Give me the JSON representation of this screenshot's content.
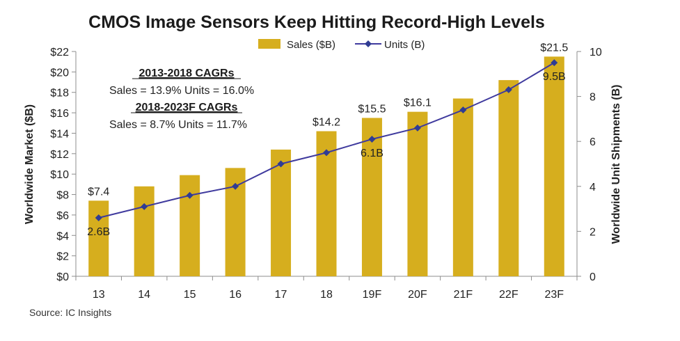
{
  "chart_data": {
    "type": "bar",
    "title": "CMOS Image Sensors Keep Hitting Record-High Levels",
    "categories": [
      "13",
      "14",
      "15",
      "16",
      "17",
      "18",
      "19F",
      "20F",
      "21F",
      "22F",
      "23F"
    ],
    "series": [
      {
        "name": "Sales ($B)",
        "type": "bar",
        "axis": "left",
        "values": [
          7.4,
          8.8,
          9.9,
          10.6,
          12.4,
          14.2,
          15.5,
          16.1,
          17.4,
          19.2,
          21.5
        ]
      },
      {
        "name": "Units (B)",
        "type": "line",
        "axis": "right",
        "values": [
          2.6,
          3.1,
          3.6,
          4.0,
          5.0,
          5.5,
          6.1,
          6.6,
          7.4,
          8.3,
          9.5
        ]
      }
    ],
    "ylabel": "Worldwide Market ($B)",
    "y2label": "Worldwide Unit Shipments (B)",
    "ylim": [
      0,
      22
    ],
    "y2lim": [
      0,
      10
    ],
    "yticks": [
      "$0",
      "$2",
      "$4",
      "$6",
      "$8",
      "$10",
      "$12",
      "$14",
      "$16",
      "$18",
      "$20",
      "$22"
    ],
    "y2ticks": [
      "0",
      "2",
      "4",
      "6",
      "8",
      "10"
    ],
    "bar_labels": [
      {
        "index": 0,
        "text": "$7.4"
      },
      {
        "index": 5,
        "text": "$14.2"
      },
      {
        "index": 6,
        "text": "$15.5"
      },
      {
        "index": 7,
        "text": "$16.1"
      },
      {
        "index": 10,
        "text": "$21.5"
      }
    ],
    "unit_labels": [
      {
        "index": 0,
        "text": "2.6B"
      },
      {
        "index": 6,
        "text": "6.1B"
      },
      {
        "index": 10,
        "text": "9.5B"
      }
    ],
    "legend": {
      "position": "top",
      "sales": "Sales ($B)",
      "units": "Units (B)"
    },
    "annotations": {
      "cagr1_heading": "2013-2018 CAGRs",
      "cagr1_text": "Sales = 13.9%  Units = 16.0%",
      "cagr2_heading": "2018-2023F CAGRs",
      "cagr2_text": "Sales = 8.7%  Units = 11.7%"
    },
    "source": "Source: IC Insights",
    "colors": {
      "bar": "#D6AE1E",
      "line": "#3F3A9E",
      "marker": "#2F3C93"
    }
  }
}
